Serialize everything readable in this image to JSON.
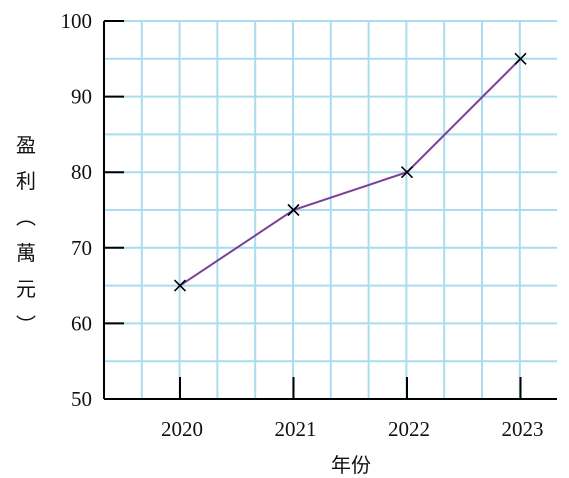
{
  "chart_data": {
    "type": "line",
    "categories": [
      "2020",
      "2021",
      "2022",
      "2023"
    ],
    "series": [
      {
        "values": [
          65,
          75,
          80,
          95
        ]
      }
    ],
    "ylim": [
      50,
      100
    ],
    "yticks": [
      50,
      60,
      70,
      80,
      90,
      100
    ],
    "xlabel": "年份",
    "ylabel": "盈利（萬元）",
    "ylabel_chars": [
      "盈",
      "利",
      "︵",
      "萬",
      "元",
      "︶"
    ],
    "grid": true,
    "marker": "x-cross",
    "colors": {
      "line": "#7b3f98",
      "grid": "#a9dcef",
      "axis": "#000000",
      "marker": "#000000"
    }
  }
}
